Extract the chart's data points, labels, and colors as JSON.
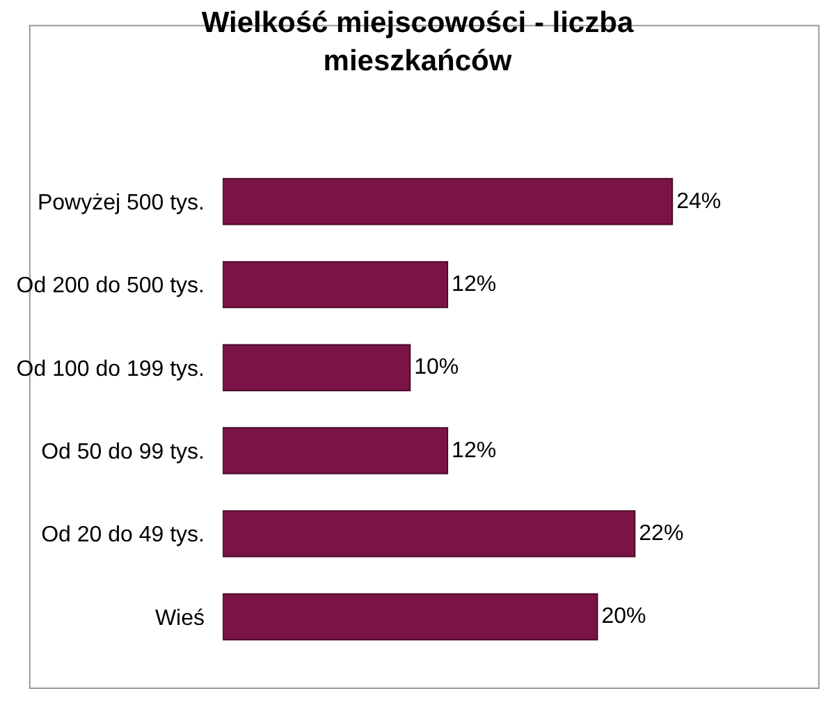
{
  "chart_data": {
    "type": "bar",
    "orientation": "horizontal",
    "title": "Wielkość miejscowości - liczba mieszkańców",
    "categories": [
      "Powyżej 500 tys.",
      "Od 200 do 500 tys.",
      "Od 100 do 199 tys.",
      "Od 50 do 99 tys.",
      "Od 20 do 49 tys.",
      "Wieś"
    ],
    "values": [
      24,
      12,
      10,
      12,
      22,
      20
    ],
    "value_labels": [
      "24%",
      "12%",
      "10%",
      "12%",
      "22%",
      "20%"
    ],
    "color": "#7b1446",
    "tick_labels": "y",
    "legend": false
  }
}
